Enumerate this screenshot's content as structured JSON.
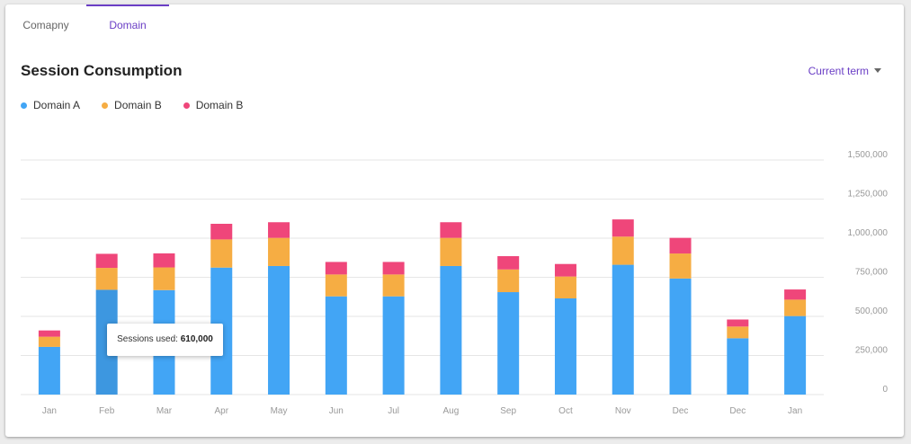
{
  "tabs": [
    {
      "label": "Comapny",
      "active": false
    },
    {
      "label": "Domain",
      "active": true
    }
  ],
  "header": {
    "title": "Session Consumption",
    "term_selector": "Current term",
    "term_icon": "caret-down-icon"
  },
  "tooltip": {
    "label": "Sessions used:",
    "value": "610,000"
  },
  "colors": {
    "accent": "#6a3ec5",
    "series_a": "#42a5f5",
    "series_b": "#f6ad43",
    "series_c": "#ef467a",
    "highlight": "#3d97e0"
  },
  "chart_data": {
    "type": "bar",
    "stacked": true,
    "categories": [
      "Jan",
      "Feb",
      "Mar",
      "Apr",
      "May",
      "Jun",
      "Jul",
      "Aug",
      "Sep",
      "Oct",
      "Nov",
      "Dec",
      "Dec",
      "Jan"
    ],
    "series": [
      {
        "name": "Domain A",
        "values": [
          305000,
          670000,
          668000,
          812000,
          822000,
          628000,
          628000,
          822000,
          655000,
          615000,
          830000,
          742000,
          360000,
          502000
        ]
      },
      {
        "name": "Domain B",
        "values": [
          65000,
          140000,
          145000,
          180000,
          180000,
          140000,
          140000,
          180000,
          145000,
          140000,
          180000,
          160000,
          75000,
          105000
        ]
      },
      {
        "name": "Domain B",
        "values": [
          40000,
          90000,
          90000,
          100000,
          100000,
          80000,
          80000,
          100000,
          85000,
          80000,
          110000,
          100000,
          45000,
          65000
        ]
      }
    ],
    "highlighted_index": 1,
    "ylim": [
      0,
      1500000
    ],
    "yticks": [
      0,
      250000,
      500000,
      750000,
      1000000,
      1250000,
      1500000
    ],
    "ytick_labels": [
      "0",
      "250,000",
      "500,000",
      "750,000",
      "1,000,000",
      "1,250,000",
      "1,500,000"
    ],
    "yaxis_side": "right",
    "grid": true,
    "legend_position": "top-left"
  }
}
